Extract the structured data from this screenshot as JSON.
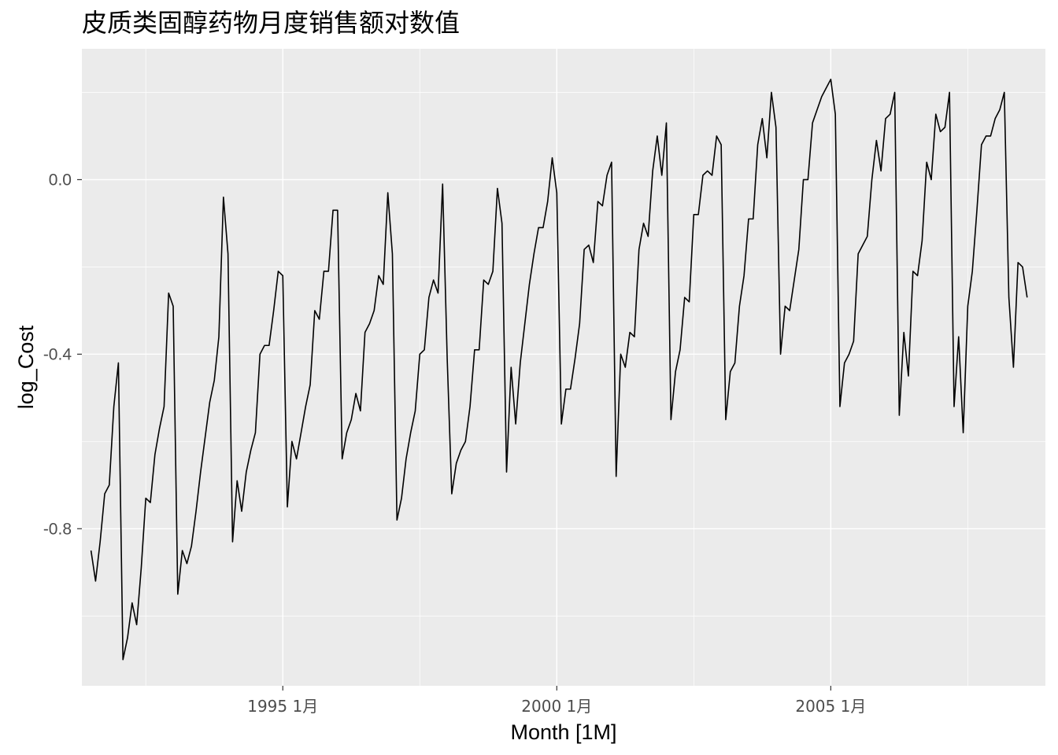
{
  "chart_data": {
    "type": "line",
    "title": "皮质类固醇药物月度销售额对数值",
    "xlabel": "Month [1M]",
    "ylabel": "log_Cost",
    "x_ticks": [
      {
        "label": "1995 1月",
        "value": "1995-01"
      },
      {
        "label": "2000 1月",
        "value": "2000-01"
      },
      {
        "label": "2005 1月",
        "value": "2005-01"
      }
    ],
    "y_ticks": [
      {
        "label": "-0.8",
        "value": -0.8
      },
      {
        "label": "-0.4",
        "value": -0.4
      },
      {
        "label": "0.0",
        "value": 0.0
      }
    ],
    "xlim": [
      "1991-05",
      "2008-12"
    ],
    "ylim": [
      -1.16,
      0.3
    ],
    "grid": true,
    "colors": {
      "panel": "#ebebeb",
      "grid": "#ffffff",
      "line": "#000000",
      "tick": "#4d4d4d"
    },
    "x_start": "1991-07",
    "series": [
      {
        "values": [
          -0.85,
          -0.92,
          -0.83,
          -0.72,
          -0.7,
          -0.52,
          -0.42,
          -1.1,
          -1.05,
          -0.97,
          -1.02,
          -0.89,
          -0.73,
          -0.74,
          -0.63,
          -0.57,
          -0.52,
          -0.26,
          -0.29,
          -0.95,
          -0.85,
          -0.88,
          -0.84,
          -0.76,
          -0.67,
          -0.59,
          -0.51,
          -0.46,
          -0.36,
          -0.04,
          -0.17,
          -0.83,
          -0.69,
          -0.76,
          -0.67,
          -0.62,
          -0.58,
          -0.4,
          -0.38,
          -0.38,
          -0.3,
          -0.21,
          -0.22,
          -0.75,
          -0.6,
          -0.64,
          -0.58,
          -0.52,
          -0.47,
          -0.3,
          -0.32,
          -0.21,
          -0.21,
          -0.07,
          -0.07,
          -0.64,
          -0.58,
          -0.55,
          -0.49,
          -0.53,
          -0.35,
          -0.33,
          -0.3,
          -0.22,
          -0.24,
          -0.03,
          -0.17,
          -0.78,
          -0.73,
          -0.64,
          -0.58,
          -0.53,
          -0.4,
          -0.39,
          -0.27,
          -0.23,
          -0.26,
          -0.01,
          -0.41,
          -0.72,
          -0.65,
          -0.62,
          -0.6,
          -0.52,
          -0.39,
          -0.39,
          -0.23,
          -0.24,
          -0.21,
          -0.02,
          -0.1,
          -0.67,
          -0.43,
          -0.56,
          -0.42,
          -0.33,
          -0.24,
          -0.17,
          -0.11,
          -0.11,
          -0.05,
          0.05,
          -0.03,
          -0.56,
          -0.48,
          -0.48,
          -0.41,
          -0.33,
          -0.16,
          -0.15,
          -0.19,
          -0.05,
          -0.06,
          0.01,
          0.04,
          -0.68,
          -0.4,
          -0.43,
          -0.35,
          -0.36,
          -0.16,
          -0.1,
          -0.13,
          0.02,
          0.1,
          0.01,
          0.13,
          -0.55,
          -0.44,
          -0.39,
          -0.27,
          -0.28,
          -0.08,
          -0.08,
          0.01,
          0.02,
          0.01,
          0.1,
          0.08,
          -0.55,
          -0.44,
          -0.42,
          -0.29,
          -0.22,
          -0.09,
          -0.09,
          0.08,
          0.14,
          0.05,
          0.2,
          0.12,
          -0.4,
          -0.29,
          -0.3,
          -0.23,
          -0.16,
          0.0,
          0.0,
          0.13,
          0.16,
          0.19,
          0.21,
          0.23,
          0.15,
          -0.52,
          -0.42,
          -0.4,
          -0.37,
          -0.17,
          -0.15,
          -0.13,
          0.0,
          0.09,
          0.02,
          0.14,
          0.15,
          0.2,
          -0.54,
          -0.35,
          -0.45,
          -0.21,
          -0.22,
          -0.14,
          0.04,
          0.0,
          0.15,
          0.11,
          0.12,
          0.2,
          -0.52,
          -0.36,
          -0.58,
          -0.29,
          -0.21,
          -0.07,
          0.08,
          0.1,
          0.1,
          0.14,
          0.16,
          0.2,
          -0.27,
          -0.43,
          -0.19,
          -0.2,
          -0.27
        ]
      }
    ]
  }
}
